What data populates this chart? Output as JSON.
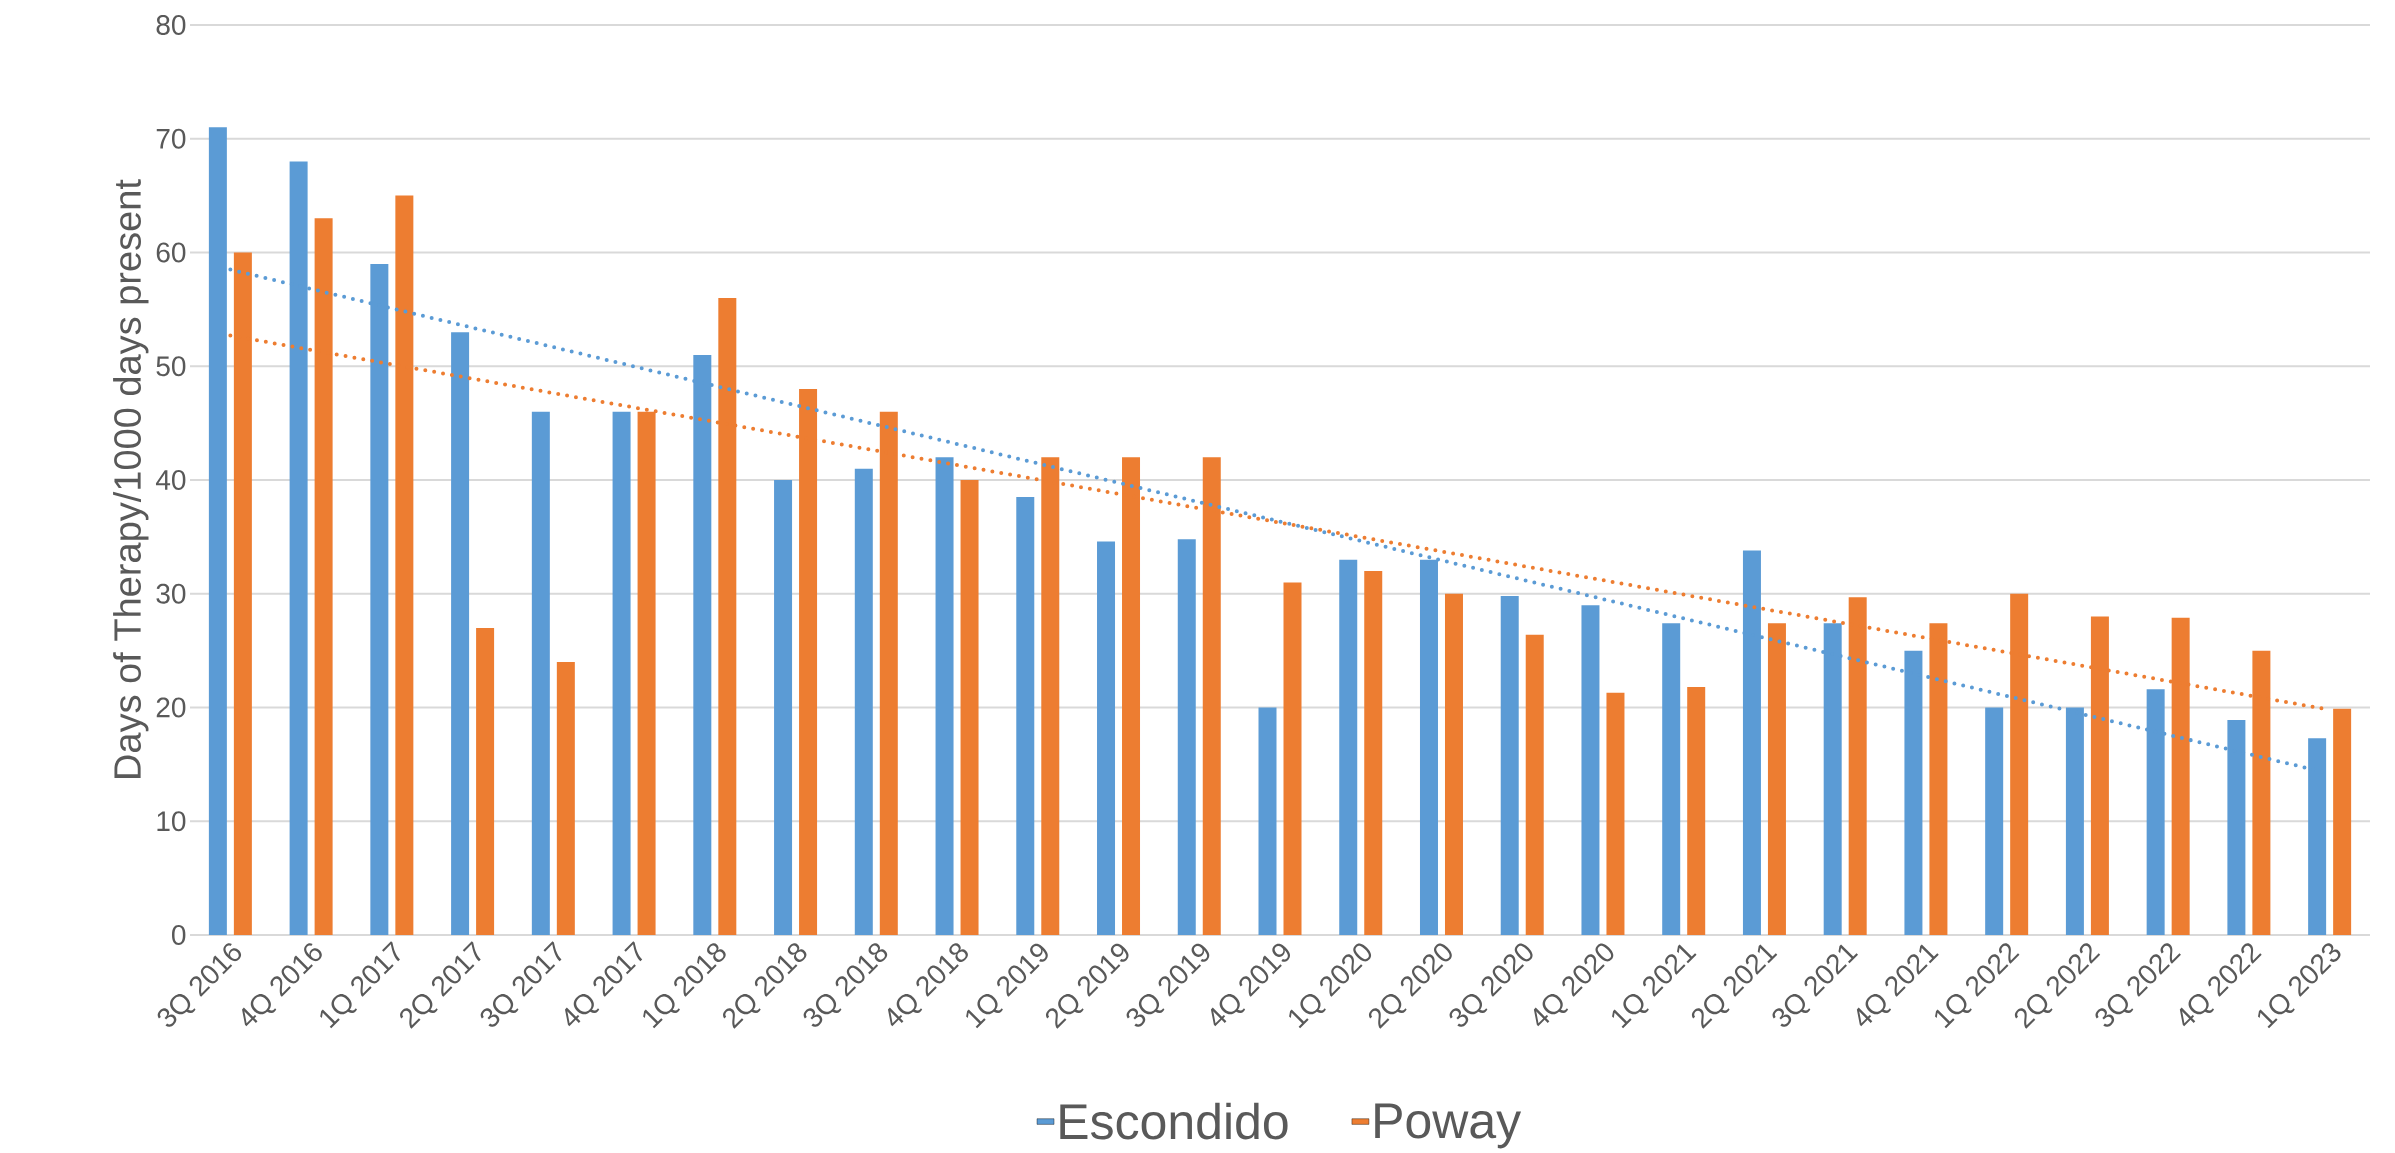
{
  "chart_data": {
    "type": "bar",
    "ylabel": "Days of Therapy/1000 days present",
    "categories": [
      "3Q 2016",
      "4Q 2016",
      "1Q 2017",
      "2Q 2017",
      "3Q 2017",
      "4Q 2017",
      "1Q 2018",
      "2Q 2018",
      "3Q 2018",
      "4Q 2018",
      "1Q 2019",
      "2Q 2019",
      "3Q 2019",
      "4Q 2019",
      "1Q 2020",
      "2Q 2020",
      "3Q 2020",
      "4Q 2020",
      "1Q 2021",
      "2Q 2021",
      "3Q 2021",
      "4Q 2021",
      "1Q 2022",
      "2Q 2022",
      "3Q 2022",
      "4Q 2022",
      "1Q 2023"
    ],
    "series": [
      {
        "name": "Escondido",
        "color": "#5b9bd5",
        "values": [
          71,
          68,
          59,
          53,
          46,
          46,
          51,
          40,
          41,
          42,
          38.5,
          34.6,
          34.8,
          20,
          33,
          33,
          29.8,
          29,
          27.4,
          33.8,
          27.4,
          25,
          20,
          20,
          21.6,
          18.9,
          17.3
        ]
      },
      {
        "name": "Poway",
        "color": "#ed7d31",
        "values": [
          60,
          63,
          65,
          27,
          24,
          46,
          56,
          48,
          46,
          40,
          42,
          42,
          42,
          31,
          32,
          30,
          26.4,
          21.3,
          21.8,
          27.4,
          29.7,
          27.4,
          30,
          28,
          27.9,
          25,
          19.9
        ]
      },
      {
        "type": "line",
        "line_style": "dotted",
        "color": "#5b9bd5",
        "x": [
          "3Q 2016",
          "1Q 2023"
        ],
        "values": [
          58.5,
          14.2
        ]
      },
      {
        "type": "line",
        "line_style": "dotted",
        "color": "#ed7d31",
        "x": [
          "3Q 2016",
          "1Q 2023"
        ],
        "values": [
          52.7,
          19.8
        ]
      }
    ],
    "ylim": [
      0,
      80
    ],
    "yticks": [
      0,
      10,
      20,
      30,
      40,
      50,
      60,
      70,
      80
    ],
    "grid": "y",
    "legend": "bottom"
  }
}
